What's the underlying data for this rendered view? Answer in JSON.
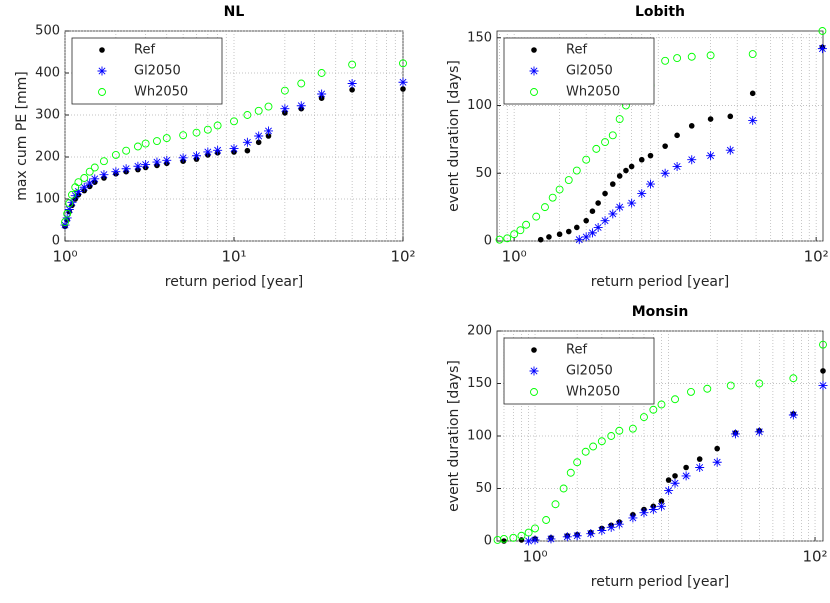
{
  "chart_data": [
    {
      "type": "scatter",
      "title": "NL",
      "xlabel": "return period [year]",
      "ylabel": "max cum PE [mm]",
      "xscale": "log",
      "xlim": [
        1,
        100
      ],
      "xticks": [
        {
          "value": 1,
          "label": "10⁰"
        },
        {
          "value": 10,
          "label": "10¹"
        },
        {
          "value": 100,
          "label": "10²"
        }
      ],
      "ylim": [
        0,
        500
      ],
      "yticks": [
        0,
        100,
        200,
        300,
        400,
        500
      ],
      "grid": true,
      "minor_grid": true,
      "legend": "upper left",
      "series": [
        {
          "name": "Ref",
          "color": "#000000",
          "marker": "dot",
          "x": [
            1.0,
            1.03,
            1.06,
            1.1,
            1.15,
            1.2,
            1.3,
            1.4,
            1.5,
            1.7,
            2.0,
            2.3,
            2.7,
            3.0,
            3.5,
            4,
            5,
            6,
            7,
            8,
            10,
            12,
            14,
            16,
            20,
            25,
            33,
            50,
            100
          ],
          "values": [
            35,
            50,
            70,
            85,
            100,
            110,
            120,
            130,
            140,
            150,
            160,
            165,
            170,
            175,
            180,
            185,
            190,
            195,
            205,
            210,
            212,
            215,
            235,
            250,
            305,
            315,
            340,
            360,
            362
          ]
        },
        {
          "name": "Gl2050",
          "color": "#0000ff",
          "marker": "asterisk",
          "x": [
            1.0,
            1.03,
            1.06,
            1.1,
            1.15,
            1.2,
            1.3,
            1.4,
            1.5,
            1.7,
            2.0,
            2.3,
            2.7,
            3.0,
            3.5,
            4,
            5,
            6,
            7,
            8,
            10,
            12,
            14,
            16,
            20,
            25,
            33,
            50,
            100
          ],
          "values": [
            38,
            55,
            75,
            92,
            108,
            118,
            128,
            138,
            148,
            158,
            165,
            172,
            178,
            182,
            188,
            192,
            198,
            203,
            212,
            216,
            220,
            235,
            250,
            262,
            315,
            322,
            350,
            375,
            378
          ]
        },
        {
          "name": "Wh2050",
          "color": "#00ff00",
          "marker": "circle",
          "x": [
            1.0,
            1.03,
            1.06,
            1.1,
            1.15,
            1.2,
            1.3,
            1.4,
            1.5,
            1.7,
            2.0,
            2.3,
            2.7,
            3.0,
            3.5,
            4,
            5,
            6,
            7,
            8,
            10,
            12,
            14,
            16,
            20,
            25,
            33,
            50,
            100
          ],
          "values": [
            45,
            65,
            90,
            110,
            128,
            140,
            150,
            165,
            175,
            190,
            205,
            215,
            225,
            232,
            238,
            245,
            252,
            258,
            265,
            275,
            285,
            300,
            310,
            320,
            358,
            375,
            400,
            420,
            423
          ]
        }
      ]
    },
    {
      "type": "scatter",
      "title": "Lobith",
      "xlabel": "return period [year]",
      "ylabel": "event duration [days]",
      "xscale": "log",
      "xlim": [
        0.77,
        111
      ],
      "xticks": [
        {
          "value": 1,
          "label": "10⁰"
        },
        {
          "value": 100,
          "label": "10²"
        }
      ],
      "ylim": [
        0,
        155
      ],
      "yticks": [
        0,
        50,
        100,
        150
      ],
      "grid": true,
      "minor_grid": true,
      "legend": "upper left",
      "series": [
        {
          "name": "Ref",
          "color": "#000000",
          "marker": "dot",
          "x": [
            1.5,
            1.7,
            2,
            2.3,
            2.6,
            3,
            3.3,
            3.6,
            4,
            4.5,
            5,
            5.5,
            6,
            7,
            8,
            10,
            12,
            15,
            20,
            27,
            38,
            110
          ],
          "values": [
            1,
            3,
            5,
            7,
            10,
            15,
            22,
            28,
            35,
            42,
            48,
            52,
            55,
            60,
            63,
            70,
            78,
            85,
            90,
            92,
            109,
            143
          ]
        },
        {
          "name": "Gl2050",
          "color": "#0000ff",
          "marker": "asterisk",
          "x": [
            2.7,
            3,
            3.3,
            3.6,
            4,
            4.5,
            5,
            6,
            7,
            8,
            10,
            12,
            15,
            20,
            27,
            38,
            110
          ],
          "values": [
            1,
            3,
            6,
            10,
            15,
            20,
            25,
            28,
            35,
            42,
            50,
            55,
            60,
            63,
            67,
            89,
            142
          ]
        },
        {
          "name": "Wh2050",
          "color": "#00ff00",
          "marker": "circle",
          "x": [
            0.8,
            0.9,
            1,
            1.1,
            1.2,
            1.4,
            1.6,
            1.8,
            2,
            2.3,
            2.6,
            3,
            3.5,
            4,
            4.5,
            5,
            5.5,
            6,
            6.5,
            7,
            8,
            10,
            12,
            15,
            20,
            38,
            110
          ],
          "values": [
            1,
            2,
            5,
            8,
            12,
            18,
            25,
            32,
            38,
            45,
            52,
            60,
            68,
            73,
            78,
            90,
            100,
            108,
            112,
            114,
            115,
            133,
            135,
            136,
            137,
            138,
            155
          ]
        }
      ]
    },
    {
      "type": "scatter",
      "title": "Monsin",
      "xlabel": "return period [year]",
      "ylabel": "event duration [days]",
      "xscale": "log",
      "xlim": [
        0.535,
        114
      ],
      "xticks": [
        {
          "value": 1,
          "label": "10⁰"
        },
        {
          "value": 100,
          "label": "10²"
        }
      ],
      "ylim": [
        0,
        200
      ],
      "yticks": [
        0,
        50,
        100,
        150,
        200
      ],
      "grid": true,
      "minor_grid": true,
      "legend": "upper left",
      "series": [
        {
          "name": "Ref",
          "color": "#000000",
          "marker": "dot",
          "x": [
            0.6,
            0.8,
            1,
            1.3,
            1.7,
            2,
            2.5,
            3,
            3.5,
            4,
            5,
            6,
            7,
            8,
            9,
            10,
            12,
            15,
            20,
            27,
            40,
            70,
            114
          ],
          "values": [
            0,
            1,
            2,
            3,
            5,
            6,
            8,
            12,
            15,
            18,
            25,
            30,
            33,
            38,
            58,
            62,
            70,
            78,
            88,
            103,
            105,
            121,
            162
          ]
        },
        {
          "name": "Gl2050",
          "color": "#0000ff",
          "marker": "asterisk",
          "x": [
            0.9,
            1,
            1.3,
            1.7,
            2,
            2.5,
            3,
            3.5,
            4,
            5,
            6,
            7,
            8,
            9,
            10,
            12,
            15,
            20,
            27,
            40,
            70,
            114
          ],
          "values": [
            0,
            1,
            2,
            4,
            5,
            7,
            10,
            13,
            16,
            22,
            27,
            30,
            33,
            48,
            55,
            62,
            70,
            75,
            102,
            104,
            120,
            148
          ]
        },
        {
          "name": "Wh2050",
          "color": "#00ff00",
          "marker": "circle",
          "x": [
            0.54,
            0.6,
            0.7,
            0.8,
            0.9,
            1,
            1.2,
            1.4,
            1.6,
            1.8,
            2,
            2.3,
            2.6,
            3,
            3.5,
            4,
            5,
            6,
            7,
            8,
            10,
            13,
            17,
            25,
            40,
            70,
            114
          ],
          "values": [
            1,
            2,
            3,
            5,
            8,
            12,
            20,
            35,
            50,
            65,
            75,
            85,
            90,
            95,
            100,
            105,
            107,
            118,
            125,
            130,
            135,
            142,
            145,
            148,
            150,
            155,
            187
          ]
        }
      ]
    }
  ]
}
